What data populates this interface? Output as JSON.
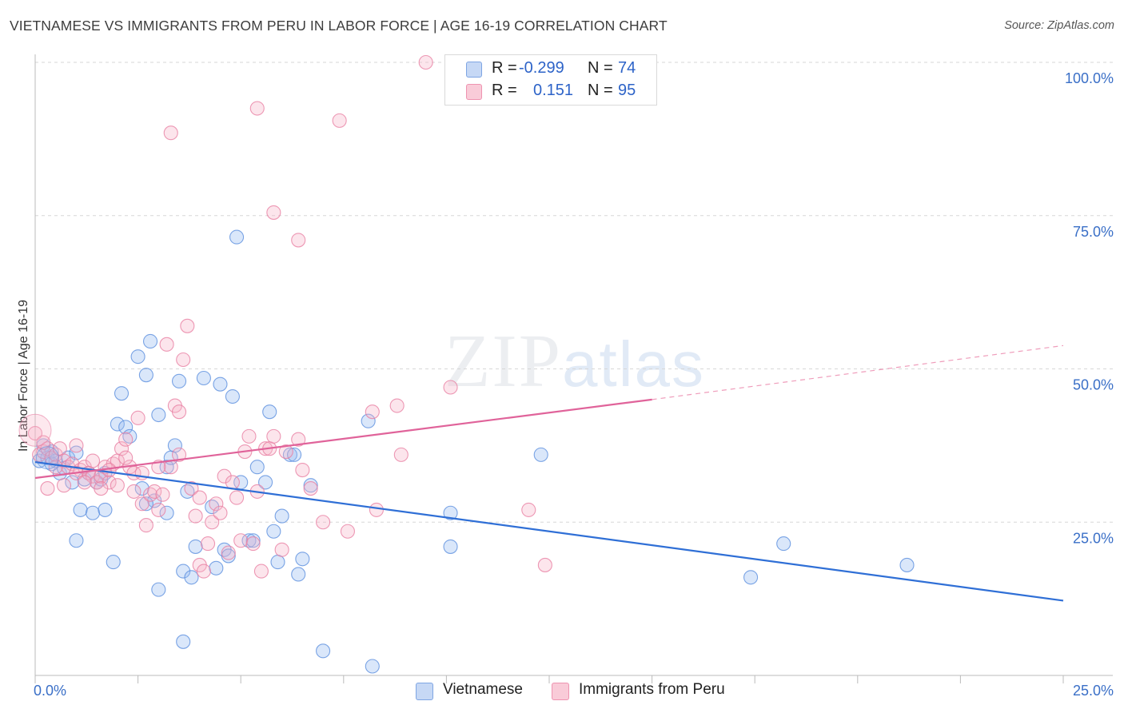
{
  "title": "VIETNAMESE VS IMMIGRANTS FROM PERU IN LABOR FORCE | AGE 16-19 CORRELATION CHART",
  "source": "Source: ZipAtlas.com",
  "watermark": {
    "zip": "ZIP",
    "atlas": "atlas"
  },
  "legend": {
    "rows": [
      {
        "r_label": "R =",
        "r_value": "-0.299",
        "n_label": "N =",
        "n_value": "74",
        "color": "#a9c4f0"
      },
      {
        "r_label": "R =",
        "r_value": "0.151",
        "n_label": "N =",
        "n_value": "95",
        "color": "#f7b6c8"
      }
    ]
  },
  "bottom_legend": [
    {
      "label": "Vietnamese",
      "color": "#a9c4f0"
    },
    {
      "label": "Immigrants from Peru",
      "color": "#f7b6c8"
    }
  ],
  "chart_data": {
    "type": "scatter",
    "title": "VIETNAMESE VS IMMIGRANTS FROM PERU IN LABOR FORCE | AGE 16-19 CORRELATION CHART",
    "xlabel": "",
    "ylabel": "In Labor Force | Age 16-19",
    "xlim": [
      0,
      25
    ],
    "ylim": [
      0,
      100
    ],
    "x_tick_labels": [
      "0.0%",
      "25.0%"
    ],
    "y_tick_labels": [
      "100.0%",
      "75.0%",
      "50.0%",
      "25.0%"
    ],
    "y_ticks": [
      100,
      75,
      50,
      25
    ],
    "grid": true,
    "legend_position": "top-center",
    "series": [
      {
        "name": "Vietnamese",
        "color": "#5b8fde",
        "fill": "rgba(150,185,240,0.35)",
        "trend": {
          "x": [
            0,
            25
          ],
          "y": [
            34.8,
            12.2
          ],
          "dashed_from": null
        },
        "points": [
          [
            0.1,
            35.0
          ],
          [
            0.2,
            37.5
          ],
          [
            0.3,
            35.5
          ],
          [
            0.4,
            36.5
          ],
          [
            0.5,
            35.0
          ],
          [
            0.6,
            33.0
          ],
          [
            0.7,
            33.8
          ],
          [
            0.8,
            35.5
          ],
          [
            0.9,
            31.5
          ],
          [
            1.0,
            36.3
          ],
          [
            1.2,
            32.0
          ],
          [
            1.3,
            33.0
          ],
          [
            1.5,
            31.5
          ],
          [
            1.6,
            32.0
          ],
          [
            1.7,
            33.0
          ],
          [
            1.1,
            27.0
          ],
          [
            1.4,
            26.5
          ],
          [
            1.7,
            27.0
          ],
          [
            2.0,
            41.0
          ],
          [
            2.1,
            46.0
          ],
          [
            2.2,
            40.5
          ],
          [
            2.3,
            39.0
          ],
          [
            2.6,
            30.5
          ],
          [
            2.5,
            52.0
          ],
          [
            2.7,
            49.0
          ],
          [
            2.8,
            54.5
          ],
          [
            2.9,
            28.5
          ],
          [
            3.0,
            42.5
          ],
          [
            3.2,
            26.5
          ],
          [
            3.2,
            34.0
          ],
          [
            3.4,
            37.5
          ],
          [
            3.3,
            35.5
          ],
          [
            3.5,
            48.0
          ],
          [
            3.7,
            30.0
          ],
          [
            3.9,
            21.0
          ],
          [
            3.6,
            17.0
          ],
          [
            3.8,
            16.0
          ],
          [
            4.1,
            48.5
          ],
          [
            4.3,
            27.5
          ],
          [
            4.4,
            17.5
          ],
          [
            4.5,
            47.5
          ],
          [
            4.6,
            20.5
          ],
          [
            4.7,
            19.5
          ],
          [
            4.8,
            45.5
          ],
          [
            5.0,
            31.5
          ],
          [
            4.9,
            71.5
          ],
          [
            5.2,
            22.0
          ],
          [
            5.3,
            22.0
          ],
          [
            5.4,
            34.0
          ],
          [
            5.6,
            31.5
          ],
          [
            5.7,
            43.0
          ],
          [
            5.8,
            23.5
          ],
          [
            5.9,
            18.5
          ],
          [
            6.0,
            26.0
          ],
          [
            6.2,
            36.0
          ],
          [
            6.3,
            36.0
          ],
          [
            6.4,
            16.5
          ],
          [
            6.5,
            19.0
          ],
          [
            6.7,
            31.0
          ],
          [
            7.0,
            4.0
          ],
          [
            8.1,
            41.5
          ],
          [
            8.2,
            1.5
          ],
          [
            10.1,
            26.5
          ],
          [
            10.1,
            21.0
          ],
          [
            12.3,
            36.0
          ],
          [
            17.4,
            16.0
          ],
          [
            18.2,
            21.5
          ],
          [
            21.2,
            18.0
          ],
          [
            1.0,
            22.0
          ],
          [
            1.9,
            18.5
          ],
          [
            3.0,
            14.0
          ],
          [
            3.6,
            5.5
          ],
          [
            2.7,
            28.0
          ],
          [
            0.4,
            34.5
          ]
        ]
      },
      {
        "name": "Immigrants from Peru",
        "color": "#e87fa3",
        "fill": "rgba(247,180,200,0.35)",
        "trend": {
          "x": [
            0,
            15,
            25
          ],
          "y": [
            32.2,
            45.0,
            53.8
          ],
          "dashed_from": 15
        },
        "points": [
          [
            0.0,
            39.5
          ],
          [
            0.1,
            36.0
          ],
          [
            0.2,
            36.5
          ],
          [
            0.3,
            37.0
          ],
          [
            0.4,
            35.5
          ],
          [
            0.5,
            36.0
          ],
          [
            0.6,
            37.0
          ],
          [
            0.7,
            35.0
          ],
          [
            0.8,
            34.0
          ],
          [
            0.9,
            34.5
          ],
          [
            1.0,
            37.5
          ],
          [
            1.1,
            33.5
          ],
          [
            1.2,
            34.0
          ],
          [
            1.3,
            33.0
          ],
          [
            1.4,
            32.5
          ],
          [
            1.5,
            31.5
          ],
          [
            1.6,
            32.5
          ],
          [
            1.7,
            34.0
          ],
          [
            1.8,
            31.5
          ],
          [
            1.9,
            34.5
          ],
          [
            2.0,
            35.0
          ],
          [
            2.1,
            37.0
          ],
          [
            2.2,
            38.5
          ],
          [
            2.3,
            34.0
          ],
          [
            2.4,
            33.0
          ],
          [
            2.5,
            42.0
          ],
          [
            2.6,
            28.0
          ],
          [
            2.7,
            24.5
          ],
          [
            2.8,
            29.5
          ],
          [
            2.9,
            30.0
          ],
          [
            3.0,
            27.0
          ],
          [
            3.1,
            29.5
          ],
          [
            3.2,
            54.0
          ],
          [
            3.3,
            34.0
          ],
          [
            3.4,
            44.0
          ],
          [
            3.5,
            43.0
          ],
          [
            3.6,
            51.5
          ],
          [
            3.7,
            57.0
          ],
          [
            3.8,
            30.5
          ],
          [
            3.9,
            26.0
          ],
          [
            4.0,
            18.0
          ],
          [
            4.1,
            17.0
          ],
          [
            4.2,
            21.5
          ],
          [
            4.3,
            25.0
          ],
          [
            4.4,
            28.0
          ],
          [
            4.5,
            26.5
          ],
          [
            4.6,
            32.5
          ],
          [
            4.7,
            20.0
          ],
          [
            4.8,
            31.5
          ],
          [
            4.9,
            29.0
          ],
          [
            5.0,
            22.0
          ],
          [
            5.1,
            36.5
          ],
          [
            5.2,
            39.0
          ],
          [
            5.3,
            21.5
          ],
          [
            5.4,
            30.0
          ],
          [
            5.5,
            17.0
          ],
          [
            5.6,
            37.0
          ],
          [
            5.7,
            37.0
          ],
          [
            5.8,
            39.0
          ],
          [
            6.0,
            20.5
          ],
          [
            6.1,
            36.5
          ],
          [
            6.4,
            38.5
          ],
          [
            6.5,
            33.5
          ],
          [
            6.7,
            30.5
          ],
          [
            7.0,
            25.0
          ],
          [
            7.4,
            90.5
          ],
          [
            7.6,
            23.5
          ],
          [
            8.2,
            43.0
          ],
          [
            8.3,
            27.0
          ],
          [
            8.8,
            44.0
          ],
          [
            8.9,
            36.0
          ],
          [
            9.5,
            100.0
          ],
          [
            10.1,
            47.0
          ],
          [
            12.0,
            27.0
          ],
          [
            12.4,
            18.0
          ],
          [
            6.4,
            71.0
          ],
          [
            5.8,
            75.5
          ],
          [
            5.4,
            92.5
          ],
          [
            3.3,
            88.5
          ],
          [
            0.3,
            30.5
          ],
          [
            0.7,
            31.0
          ],
          [
            1.0,
            33.0
          ],
          [
            1.4,
            35.0
          ],
          [
            2.0,
            31.0
          ],
          [
            2.2,
            35.5
          ],
          [
            2.6,
            33.0
          ],
          [
            3.0,
            34.0
          ],
          [
            0.5,
            34.0
          ],
          [
            1.2,
            31.5
          ],
          [
            1.8,
            33.5
          ],
          [
            2.4,
            30.0
          ],
          [
            0.2,
            38.0
          ],
          [
            3.5,
            36.0
          ],
          [
            4.0,
            29.0
          ],
          [
            1.6,
            30.5
          ]
        ]
      }
    ]
  }
}
